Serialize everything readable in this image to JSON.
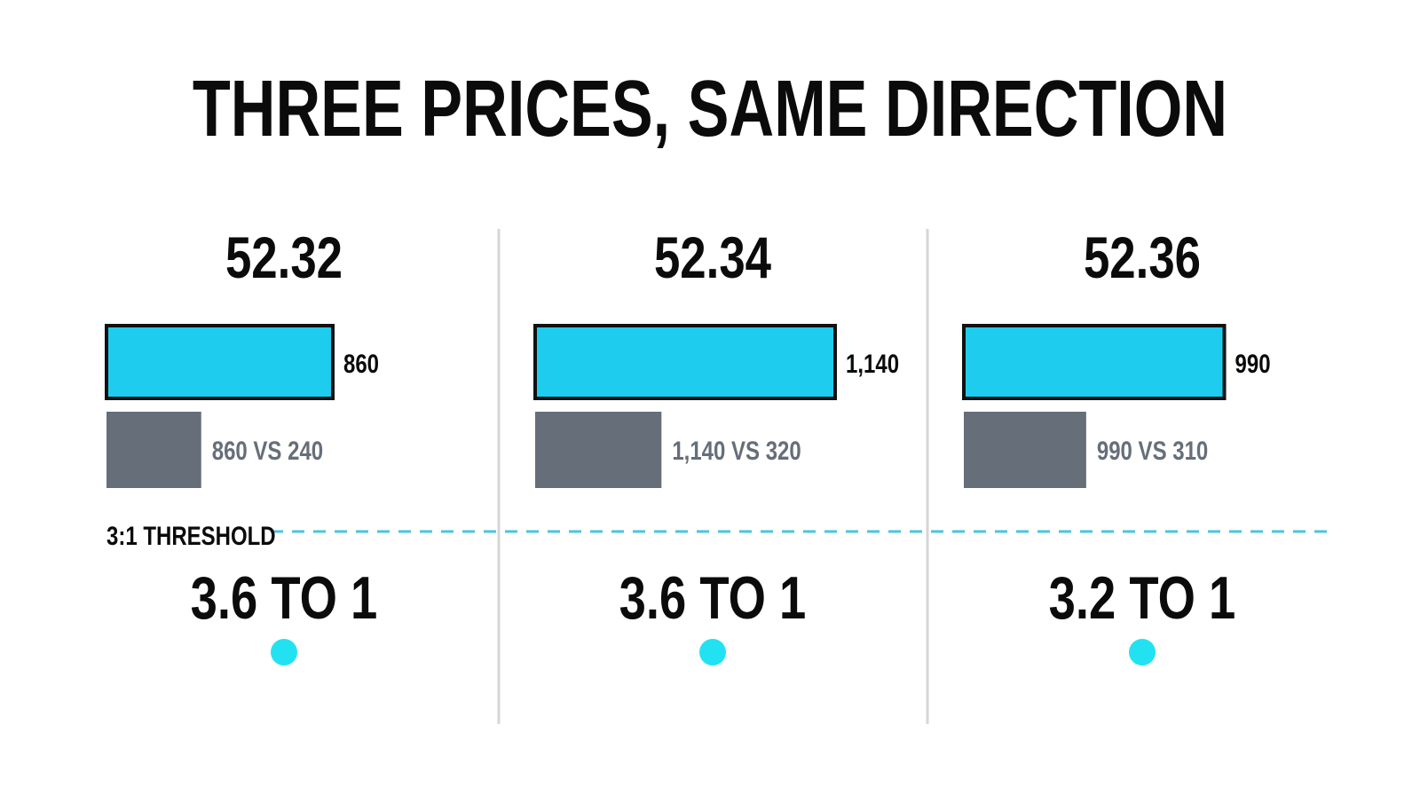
{
  "chart_data": {
    "type": "bar",
    "title": "THREE PRICES, SAME DIRECTION",
    "threshold_label": "3:1 THRESHOLD",
    "threshold_ratio": 3,
    "colors": {
      "primary_bar": "#1ecdee",
      "secondary_bar": "#666e7a",
      "threshold_line": "#48c6dd",
      "dot": "#22e2f2",
      "divider": "#d6d6d6",
      "text": "#0b0b0b",
      "muted_text": "#666e7a"
    },
    "panels": [
      {
        "price": "52.32",
        "primary_value": 860,
        "primary_label": "860",
        "secondary_value": 240,
        "comparison_label": "860 VS 240",
        "ratio_label": "3.6 TO 1"
      },
      {
        "price": "52.34",
        "primary_value": 1140,
        "primary_label": "1,140",
        "secondary_value": 320,
        "comparison_label": "1,140 VS 320",
        "ratio_label": "3.6 TO 1"
      },
      {
        "price": "52.36",
        "primary_value": 990,
        "primary_label": "990",
        "secondary_value": 310,
        "comparison_label": "990 VS 310",
        "ratio_label": "3.2 TO 1"
      }
    ]
  }
}
